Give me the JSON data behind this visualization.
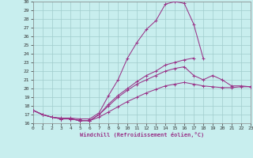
{
  "xlabel": "Windchill (Refroidissement éolien,°C)",
  "bg_color": "#c8eeee",
  "grid_color": "#a0cccc",
  "line_color": "#993388",
  "xlim": [
    0,
    23
  ],
  "ylim": [
    16,
    30
  ],
  "xticks": [
    0,
    1,
    2,
    3,
    4,
    5,
    6,
    7,
    8,
    9,
    10,
    11,
    12,
    13,
    14,
    15,
    16,
    17,
    18,
    19,
    20,
    21,
    22,
    23
  ],
  "yticks": [
    16,
    17,
    18,
    19,
    20,
    21,
    22,
    23,
    24,
    25,
    26,
    27,
    28,
    29,
    30
  ],
  "lines": [
    {
      "x": [
        0,
        1,
        2,
        3,
        4,
        5,
        6,
        7,
        8,
        9,
        10,
        11,
        12,
        13,
        14,
        15,
        16,
        17,
        18
      ],
      "y": [
        17.5,
        17.0,
        16.7,
        16.6,
        16.6,
        16.5,
        16.5,
        17.2,
        19.2,
        21.0,
        23.5,
        25.3,
        26.8,
        27.8,
        29.7,
        30.0,
        29.8,
        27.4,
        23.5
      ]
    },
    {
      "x": [
        0,
        1,
        2,
        3,
        4,
        5,
        6,
        7,
        8,
        9,
        10,
        11,
        12,
        13,
        14,
        15,
        16,
        17,
        18,
        19,
        20,
        21,
        22,
        23
      ],
      "y": [
        17.5,
        17.0,
        16.7,
        16.5,
        16.5,
        16.3,
        16.3,
        17.0,
        18.0,
        19.0,
        19.8,
        20.5,
        21.0,
        21.5,
        22.0,
        22.3,
        22.5,
        21.5,
        21.0,
        21.5,
        21.0,
        20.3,
        20.3,
        20.2
      ]
    },
    {
      "x": [
        0,
        1,
        2,
        3,
        4,
        5,
        6,
        7,
        8,
        9,
        10,
        11,
        12,
        13,
        14,
        15,
        16,
        17
      ],
      "y": [
        17.5,
        17.0,
        16.7,
        16.5,
        16.5,
        16.3,
        16.3,
        17.0,
        18.2,
        19.2,
        20.0,
        20.8,
        21.5,
        22.0,
        22.7,
        23.0,
        23.3,
        23.5
      ]
    },
    {
      "x": [
        0,
        1,
        2,
        3,
        4,
        5,
        6,
        7,
        8,
        9,
        10,
        11,
        12,
        13,
        14,
        15,
        16,
        17,
        18,
        19,
        20,
        21,
        22,
        23
      ],
      "y": [
        17.5,
        17.0,
        16.7,
        16.5,
        16.5,
        16.3,
        16.3,
        16.7,
        17.3,
        17.9,
        18.5,
        19.0,
        19.5,
        19.9,
        20.3,
        20.5,
        20.7,
        20.5,
        20.3,
        20.2,
        20.1,
        20.1,
        20.2,
        20.2
      ]
    }
  ]
}
